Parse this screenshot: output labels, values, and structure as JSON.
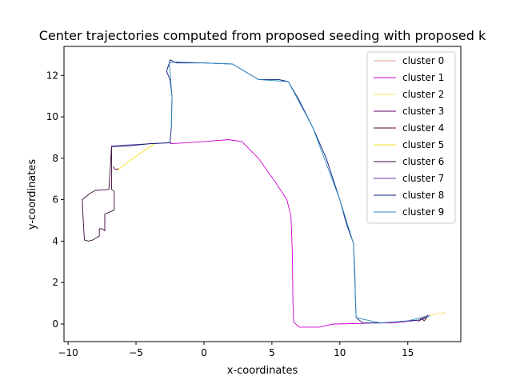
{
  "chart_data": {
    "type": "line",
    "title": "Center trajectories computed from proposed seeding with proposed k",
    "xlabel": "x-coordinates",
    "ylabel": "y-coordinates",
    "xlim": [
      -10.3,
      18.9
    ],
    "ylim": [
      -0.85,
      13.4
    ],
    "xticks": [
      -10,
      -5,
      0,
      5,
      10,
      15
    ],
    "yticks": [
      0,
      2,
      4,
      6,
      8,
      10,
      12
    ],
    "tick_labels_x": [
      "−10",
      "−5",
      "0",
      "5",
      "10",
      "15"
    ],
    "tick_labels_y": [
      "0",
      "2",
      "4",
      "6",
      "8",
      "10",
      "12"
    ],
    "grid": false,
    "legend_position": "upper-right",
    "series": [
      {
        "name": "cluster 0",
        "color": "#e0a090",
        "points": [
          [
            15.9,
            0.25
          ],
          [
            16.1,
            0.35
          ],
          [
            16.4,
            0.4
          ]
        ]
      },
      {
        "name": "cluster 1",
        "color": "#cc00cc",
        "points": [
          [
            -2.5,
            8.7
          ],
          [
            0,
            8.8
          ],
          [
            1.8,
            8.9
          ],
          [
            2.8,
            8.8
          ],
          [
            4,
            8
          ],
          [
            5.2,
            6.9
          ],
          [
            6.1,
            6
          ],
          [
            6.4,
            5.2
          ],
          [
            6.5,
            3.5
          ],
          [
            6.55,
            1
          ],
          [
            6.6,
            0.1
          ],
          [
            7,
            -0.15
          ],
          [
            8.5,
            -0.15
          ],
          [
            9.5,
            0
          ],
          [
            11,
            0.02
          ],
          [
            12.5,
            0.05
          ],
          [
            14,
            0.05
          ],
          [
            16,
            0.2
          ],
          [
            16.5,
            0.45
          ]
        ]
      },
      {
        "name": "cluster 2",
        "color": "#f0e060",
        "points": [
          [
            16.2,
            0.35
          ],
          [
            17,
            0.48
          ],
          [
            17.8,
            0.55
          ]
        ]
      },
      {
        "name": "cluster 3",
        "color": "#6a006a",
        "points": [
          [
            -6.7,
            7.6
          ],
          [
            -6.5,
            7.45
          ],
          [
            -6.3,
            7.5
          ]
        ]
      },
      {
        "name": "cluster 4",
        "color": "#6a0a14",
        "points": [
          [
            15.8,
            0.1
          ],
          [
            16.0,
            0.3
          ],
          [
            16.2,
            0.15
          ],
          [
            16.4,
            0.3
          ]
        ]
      },
      {
        "name": "cluster 5",
        "color": "#f0e020",
        "points": [
          [
            -6.4,
            7.4
          ],
          [
            -5.2,
            8
          ],
          [
            -3.5,
            8.75
          ]
        ]
      },
      {
        "name": "cluster 6",
        "color": "#3a0a3a",
        "points": [
          [
            -6.8,
            8.5
          ],
          [
            -6.8,
            7
          ],
          [
            -6.8,
            6.5
          ],
          [
            -6.6,
            6.4
          ],
          [
            -6.6,
            5.5
          ],
          [
            -7.3,
            5.3
          ],
          [
            -7.3,
            4.5
          ],
          [
            -7.5,
            4.6
          ],
          [
            -7.7,
            4.6
          ],
          [
            -7.7,
            4.25
          ],
          [
            -8.2,
            4.05
          ],
          [
            -8.5,
            4.0
          ],
          [
            -8.8,
            4.05
          ],
          [
            -8.9,
            5.2
          ],
          [
            -8.95,
            6
          ],
          [
            -8.4,
            6.3
          ],
          [
            -8.0,
            6.45
          ],
          [
            -7.0,
            6.5
          ],
          [
            -6.8,
            8.6
          ]
        ]
      },
      {
        "name": "cluster 7",
        "color": "#6a3aa0",
        "points": [
          [
            -6.8,
            8.6
          ],
          [
            -4,
            8.7
          ],
          [
            -2.4,
            8.75
          ]
        ]
      },
      {
        "name": "cluster 8",
        "color": "#0a1a7a",
        "points": [
          [
            -6.8,
            8.55
          ],
          [
            -5.5,
            8.6
          ],
          [
            -4,
            8.7
          ],
          [
            -2.5,
            8.75
          ],
          [
            -2.4,
            9.5
          ],
          [
            -2.35,
            11
          ],
          [
            -2.5,
            11.8
          ],
          [
            -2.75,
            12.2
          ],
          [
            -2.55,
            12.6
          ],
          [
            -2.5,
            12.75
          ],
          [
            -2,
            12.6
          ],
          [
            0,
            12.6
          ],
          [
            2.1,
            12.55
          ],
          [
            3,
            12.2
          ],
          [
            4,
            11.8
          ],
          [
            5.5,
            11.8
          ],
          [
            6.2,
            11.7
          ],
          [
            7,
            10.8
          ],
          [
            8,
            9.5
          ],
          [
            9,
            8
          ],
          [
            10,
            6
          ],
          [
            10.5,
            4.8
          ],
          [
            11,
            3.9
          ],
          [
            11.1,
            2.5
          ],
          [
            11.15,
            1
          ],
          [
            11.2,
            0.3
          ],
          [
            11.7,
            0.05
          ],
          [
            13,
            0.05
          ],
          [
            14,
            0.1
          ],
          [
            15,
            0.15
          ],
          [
            16,
            0.2
          ],
          [
            16.6,
            0.4
          ]
        ]
      },
      {
        "name": "cluster 9",
        "color": "#2a8ac0",
        "points": [
          [
            -2.4,
            9.5
          ],
          [
            -2.35,
            11
          ],
          [
            -2.55,
            12.6
          ],
          [
            -2,
            12.65
          ],
          [
            2.1,
            12.55
          ],
          [
            4,
            11.8
          ],
          [
            6.2,
            11.7
          ],
          [
            8,
            9.5
          ],
          [
            10,
            6
          ],
          [
            11,
            3.9
          ],
          [
            11.2,
            0.3
          ],
          [
            13,
            0.05
          ],
          [
            15,
            0.15
          ],
          [
            16.6,
            0.4
          ]
        ]
      }
    ]
  }
}
